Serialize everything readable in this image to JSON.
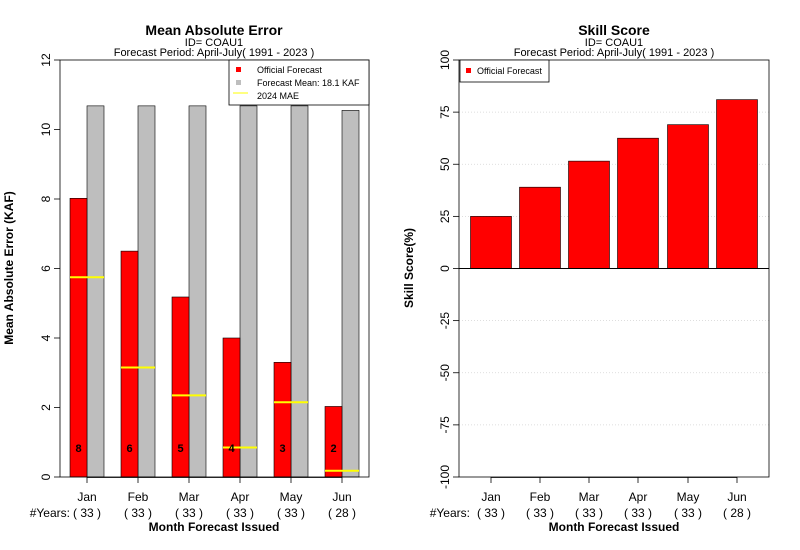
{
  "chart_data": [
    {
      "type": "bar",
      "title": "Mean Absolute Error",
      "subtitle_lines": [
        "ID= COAU1",
        "Forecast Period: April-July( 1991 - 2023 )"
      ],
      "xlabel": "Month Forecast Issued",
      "ylabel": "Mean Absolute Error (KAF)",
      "ylim": [
        0,
        12
      ],
      "yticks": [
        0,
        2,
        4,
        6,
        8,
        10,
        12
      ],
      "years_label": "#Years:",
      "categories": [
        "Jan",
        "Feb",
        "Mar",
        "Apr",
        "May",
        "Jun"
      ],
      "years": [
        "( 33 )",
        "( 33 )",
        "( 33 )",
        "( 33 )",
        "( 33 )",
        "( 28 )"
      ],
      "series": [
        {
          "name": "Official Forecast",
          "color": "#ff0000",
          "values": [
            8.02,
            6.5,
            5.18,
            4.0,
            3.3,
            2.03
          ]
        },
        {
          "name": "Forecast Mean: 18.1 KAF",
          "color": "#bebebe",
          "values": [
            10.68,
            10.68,
            10.68,
            10.68,
            10.68,
            10.55
          ]
        }
      ],
      "mae_2024": {
        "name": "2024  MAE",
        "color": "#ffff00",
        "values": [
          5.75,
          3.15,
          2.35,
          0.85,
          2.15,
          0.18
        ]
      },
      "rank_labels": [
        "8",
        "6",
        "5",
        "4",
        "3",
        "2"
      ],
      "legend_position": "top-right",
      "grid": false
    },
    {
      "type": "bar",
      "title": "Skill Score",
      "subtitle_lines": [
        "ID= COAU1",
        "Forecast Period: April-July( 1991 - 2023 )"
      ],
      "xlabel": "Month Forecast Issued",
      "ylabel": "Skill Score(%)",
      "ylim": [
        -100,
        100
      ],
      "yticks": [
        -100,
        -75,
        -50,
        -25,
        0,
        25,
        50,
        75,
        100
      ],
      "years_label": "#Years:",
      "categories": [
        "Jan",
        "Feb",
        "Mar",
        "Apr",
        "May",
        "Jun"
      ],
      "years": [
        "( 33 )",
        "( 33 )",
        "( 33 )",
        "( 33 )",
        "( 33 )",
        "( 28 )"
      ],
      "series": [
        {
          "name": "Official Forecast",
          "color": "#ff0000",
          "values": [
            25,
            39,
            51.5,
            62.5,
            69,
            81
          ]
        }
      ],
      "legend_position": "top-left",
      "grid": true
    }
  ]
}
